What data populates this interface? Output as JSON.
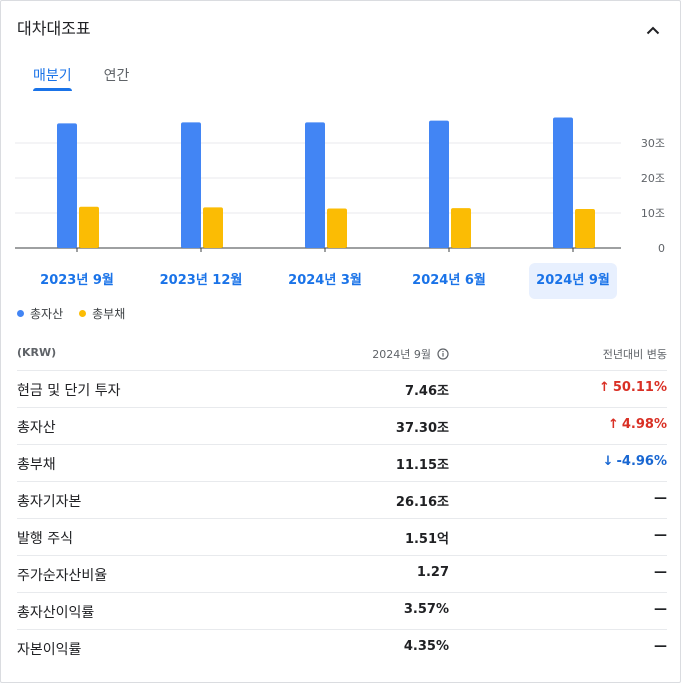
{
  "header": {
    "title": "대차대조표"
  },
  "tabs": [
    {
      "label": "매분기",
      "active": true
    },
    {
      "label": "연간",
      "active": false
    }
  ],
  "chart_data": {
    "type": "bar",
    "categories": [
      "2023년 9월",
      "2023년 12월",
      "2024년 3월",
      "2024년 6월",
      "2024년 9월"
    ],
    "selected_index": 4,
    "series": [
      {
        "name": "총자산",
        "color": "#4285f4",
        "values": [
          35.6,
          35.9,
          35.9,
          36.4,
          37.3
        ]
      },
      {
        "name": "총부채",
        "color": "#fbbc04",
        "values": [
          11.8,
          11.6,
          11.3,
          11.4,
          11.15
        ]
      }
    ],
    "ylim": [
      0,
      40
    ],
    "yticks": [
      {
        "value": 0,
        "label": "0"
      },
      {
        "value": 10,
        "label": "10조"
      },
      {
        "value": 20,
        "label": "20조"
      },
      {
        "value": 30,
        "label": "30조"
      }
    ],
    "grid": true,
    "legend": "bottom-left"
  },
  "table": {
    "headers": {
      "label": "(KRW)",
      "value": "2024년 9월",
      "change": "전년대비 변동"
    },
    "rows": [
      {
        "label": "현금 및 단기 투자",
        "value": "7.46조",
        "change": "50.11%",
        "dir": "up"
      },
      {
        "label": "총자산",
        "value": "37.30조",
        "change": "4.98%",
        "dir": "up"
      },
      {
        "label": "총부채",
        "value": "11.15조",
        "change": "-4.96%",
        "dir": "down"
      },
      {
        "label": "총자기자본",
        "value": "26.16조",
        "change": "—",
        "dir": "flat"
      },
      {
        "label": "발행 주식",
        "value": "1.51억",
        "change": "—",
        "dir": "flat"
      },
      {
        "label": "주가순자산비율",
        "value": "1.27",
        "change": "—",
        "dir": "flat"
      },
      {
        "label": "총자산이익률",
        "value": "3.57%",
        "change": "—",
        "dir": "flat"
      },
      {
        "label": "자본이익률",
        "value": "4.35%",
        "change": "—",
        "dir": "flat"
      }
    ]
  }
}
